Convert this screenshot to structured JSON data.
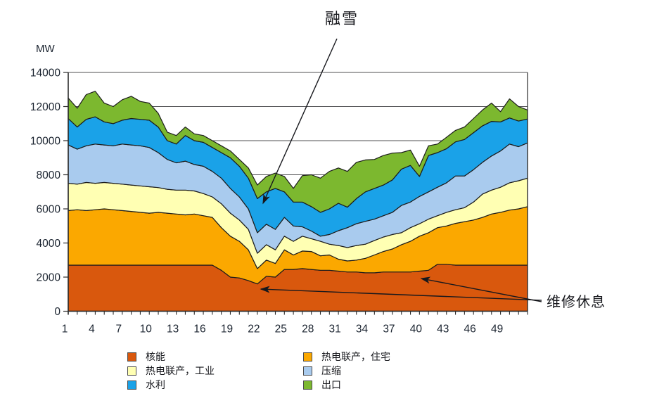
{
  "chart_data": {
    "type": "area",
    "stacked": true,
    "ylabel": "MW",
    "ylim": [
      0,
      14000
    ],
    "ytick_step": 2000,
    "grid": true,
    "legend_position": "bottom",
    "x": [
      1,
      2,
      3,
      4,
      5,
      6,
      7,
      8,
      9,
      10,
      11,
      12,
      13,
      14,
      15,
      16,
      17,
      18,
      19,
      20,
      21,
      22,
      23,
      24,
      25,
      26,
      27,
      28,
      29,
      30,
      31,
      32,
      33,
      34,
      35,
      36,
      37,
      38,
      39,
      40,
      41,
      42,
      43,
      44,
      45,
      46,
      47,
      48,
      49,
      50,
      51,
      52
    ],
    "x_tick_labels": [
      1,
      4,
      7,
      10,
      13,
      16,
      19,
      22,
      25,
      28,
      31,
      34,
      37,
      40,
      43,
      46,
      49
    ],
    "series": [
      {
        "key": "nuclear",
        "name": "核能",
        "color": "#D9580D",
        "values": [
          2700,
          2700,
          2700,
          2700,
          2700,
          2700,
          2700,
          2700,
          2700,
          2700,
          2700,
          2700,
          2700,
          2700,
          2700,
          2700,
          2700,
          2400,
          2000,
          1950,
          1800,
          1600,
          2050,
          2000,
          2450,
          2450,
          2500,
          2450,
          2400,
          2400,
          2350,
          2300,
          2300,
          2250,
          2250,
          2300,
          2300,
          2300,
          2300,
          2350,
          2400,
          2750,
          2750,
          2700,
          2700,
          2700,
          2700,
          2700,
          2700,
          2700,
          2700,
          2700
        ]
      },
      {
        "key": "chp-residential",
        "name": "热电联产，住宅",
        "color": "#FBA800",
        "values": [
          3200,
          3250,
          3200,
          3250,
          3300,
          3250,
          3200,
          3150,
          3100,
          3050,
          3100,
          3050,
          3000,
          2950,
          3000,
          2900,
          2800,
          2500,
          2400,
          2150,
          1800,
          900,
          950,
          800,
          1150,
          850,
          1030,
          1050,
          850,
          900,
          700,
          650,
          700,
          850,
          1050,
          1200,
          1350,
          1600,
          1800,
          2050,
          2200,
          2150,
          2250,
          2450,
          2550,
          2650,
          2800,
          3000,
          3100,
          3230,
          3300,
          3430
        ]
      },
      {
        "key": "chp-industrial",
        "name": "热电联产，工业",
        "color": "#FFFFB3",
        "values": [
          1600,
          1500,
          1650,
          1550,
          1550,
          1550,
          1550,
          1550,
          1550,
          1550,
          1450,
          1400,
          1400,
          1450,
          1350,
          1300,
          1200,
          1400,
          1350,
          1250,
          1200,
          900,
          900,
          800,
          800,
          800,
          870,
          750,
          850,
          630,
          800,
          780,
          850,
          830,
          850,
          850,
          850,
          700,
          800,
          730,
          800,
          700,
          800,
          800,
          820,
          1050,
          1370,
          1400,
          1470,
          1600,
          1650,
          1670
        ]
      },
      {
        "key": "condensing",
        "name": "压缩",
        "color": "#A9CBEE",
        "values": [
          2250,
          2050,
          2150,
          2300,
          2200,
          2200,
          2350,
          2350,
          2350,
          2300,
          2050,
          1750,
          1600,
          1700,
          1550,
          1600,
          1500,
          1500,
          1450,
          1350,
          1200,
          1200,
          1200,
          1200,
          1100,
          900,
          550,
          450,
          300,
          570,
          870,
          1170,
          1280,
          1340,
          1250,
          1250,
          1300,
          1600,
          1500,
          1600,
          1600,
          1670,
          1730,
          1980,
          1860,
          1900,
          1860,
          2000,
          2130,
          2270,
          2000,
          2070
        ]
      },
      {
        "key": "hydro",
        "name": "水利",
        "color": "#1AA2E8",
        "values": [
          1550,
          1300,
          1550,
          1600,
          1350,
          1300,
          1400,
          1550,
          1550,
          1600,
          1500,
          1100,
          1100,
          1500,
          1400,
          1400,
          1400,
          1500,
          1800,
          1800,
          1800,
          2000,
          1900,
          2400,
          1500,
          1400,
          1450,
          1430,
          1400,
          1500,
          1610,
          1200,
          1470,
          1730,
          1800,
          1800,
          1900,
          2130,
          2150,
          1170,
          2130,
          2030,
          2000,
          2000,
          2140,
          2170,
          2140,
          2030,
          1700,
          1530,
          1500,
          1400
        ]
      },
      {
        "key": "export",
        "name": "出口",
        "color": "#7CB82F",
        "values": [
          1200,
          1100,
          1450,
          1500,
          1100,
          1000,
          1200,
          1300,
          1050,
          1000,
          800,
          500,
          500,
          500,
          400,
          400,
          400,
          400,
          400,
          400,
          600,
          800,
          900,
          900,
          900,
          800,
          1550,
          1870,
          2000,
          2200,
          2070,
          2100,
          2130,
          1870,
          1700,
          1730,
          1570,
          970,
          900,
          600,
          570,
          500,
          670,
          670,
          730,
          830,
          930,
          1070,
          600,
          1120,
          850,
          530
        ]
      }
    ],
    "annotations": {
      "snowmelt": "融雪",
      "maintenance": "维修休息"
    },
    "legend": {
      "col1": [
        {
          "label": "核能",
          "color": "#D9580D"
        },
        {
          "label": "热电联产，工业",
          "color": "#FFFFB3"
        },
        {
          "label": "水利",
          "color": "#1AA2E8"
        }
      ],
      "col2": [
        {
          "label": "热电联产，住宅",
          "color": "#FBA800"
        },
        {
          "label": "压缩",
          "color": "#A9CBEE"
        },
        {
          "label": "出口",
          "color": "#7CB82F"
        }
      ]
    }
  }
}
